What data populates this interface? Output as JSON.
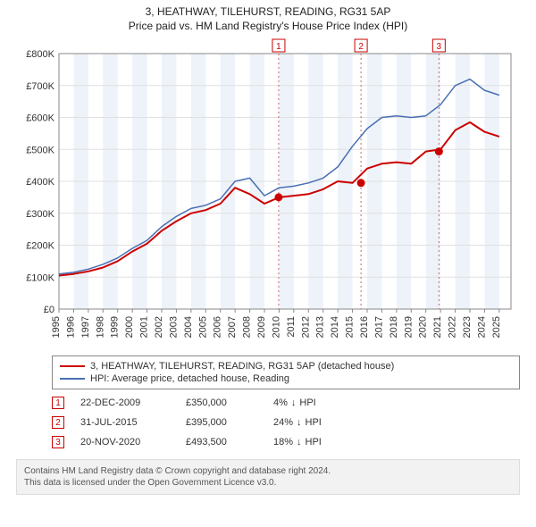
{
  "title": {
    "line1": "3, HEATHWAY, TILEHURST, READING, RG31 5AP",
    "line2": "Price paid vs. HM Land Registry's House Price Index (HPI)"
  },
  "chart": {
    "type": "line",
    "background_color": "#ffffff",
    "plot_border_color": "#888888",
    "grid_color": "#e0e0e0",
    "band_color": "#eef3fa",
    "ylabel_prefix": "£",
    "ylim": [
      0,
      800000
    ],
    "yticks": [
      0,
      100000,
      200000,
      300000,
      400000,
      500000,
      600000,
      700000,
      800000
    ],
    "ytick_labels": [
      "£0",
      "£100K",
      "£200K",
      "£300K",
      "£400K",
      "£500K",
      "£600K",
      "£700K",
      "£800K"
    ],
    "xlim": [
      1995,
      2025.8
    ],
    "xticks": [
      1995,
      1996,
      1997,
      1998,
      1999,
      2000,
      2001,
      2002,
      2003,
      2004,
      2005,
      2006,
      2007,
      2008,
      2009,
      2010,
      2011,
      2012,
      2013,
      2014,
      2015,
      2016,
      2017,
      2018,
      2019,
      2020,
      2021,
      2022,
      2023,
      2024,
      2025
    ],
    "series": [
      {
        "key": "property",
        "color": "#cc0000",
        "width": 2,
        "points": [
          [
            1995,
            105000
          ],
          [
            1996,
            110000
          ],
          [
            1997,
            118000
          ],
          [
            1998,
            130000
          ],
          [
            1999,
            150000
          ],
          [
            2000,
            180000
          ],
          [
            2001,
            205000
          ],
          [
            2002,
            245000
          ],
          [
            2003,
            275000
          ],
          [
            2004,
            300000
          ],
          [
            2005,
            310000
          ],
          [
            2006,
            330000
          ],
          [
            2007,
            380000
          ],
          [
            2008,
            360000
          ],
          [
            2009,
            330000
          ],
          [
            2010,
            350000
          ],
          [
            2011,
            355000
          ],
          [
            2012,
            360000
          ],
          [
            2013,
            375000
          ],
          [
            2014,
            400000
          ],
          [
            2015,
            395000
          ],
          [
            2016,
            440000
          ],
          [
            2017,
            455000
          ],
          [
            2018,
            460000
          ],
          [
            2019,
            455000
          ],
          [
            2020,
            493500
          ],
          [
            2021,
            500000
          ],
          [
            2022,
            560000
          ],
          [
            2023,
            585000
          ],
          [
            2024,
            555000
          ],
          [
            2025,
            540000
          ]
        ]
      },
      {
        "key": "hpi",
        "color": "#4a6fb3",
        "width": 1.5,
        "points": [
          [
            1995,
            110000
          ],
          [
            1996,
            115000
          ],
          [
            1997,
            125000
          ],
          [
            1998,
            140000
          ],
          [
            1999,
            160000
          ],
          [
            2000,
            190000
          ],
          [
            2001,
            215000
          ],
          [
            2002,
            258000
          ],
          [
            2003,
            290000
          ],
          [
            2004,
            315000
          ],
          [
            2005,
            325000
          ],
          [
            2006,
            345000
          ],
          [
            2007,
            400000
          ],
          [
            2008,
            410000
          ],
          [
            2009,
            355000
          ],
          [
            2010,
            380000
          ],
          [
            2011,
            385000
          ],
          [
            2012,
            395000
          ],
          [
            2013,
            410000
          ],
          [
            2014,
            445000
          ],
          [
            2015,
            510000
          ],
          [
            2016,
            565000
          ],
          [
            2017,
            600000
          ],
          [
            2018,
            605000
          ],
          [
            2019,
            600000
          ],
          [
            2020,
            605000
          ],
          [
            2021,
            640000
          ],
          [
            2022,
            700000
          ],
          [
            2023,
            720000
          ],
          [
            2024,
            685000
          ],
          [
            2025,
            670000
          ]
        ]
      }
    ],
    "event_markers": [
      {
        "n": "1",
        "x": 2009.97,
        "y": 350000
      },
      {
        "n": "2",
        "x": 2015.58,
        "y": 395000
      },
      {
        "n": "3",
        "x": 2020.89,
        "y": 493500
      }
    ]
  },
  "legend": {
    "items": [
      {
        "color": "#cc0000",
        "label": "3, HEATHWAY, TILEHURST, READING, RG31 5AP (detached house)"
      },
      {
        "color": "#4a6fb3",
        "label": "HPI: Average price, detached house, Reading"
      }
    ]
  },
  "events": [
    {
      "n": "1",
      "date": "22-DEC-2009",
      "price": "£350,000",
      "delta": "4%",
      "dir": "↓",
      "vs": "HPI"
    },
    {
      "n": "2",
      "date": "31-JUL-2015",
      "price": "£395,000",
      "delta": "24%",
      "dir": "↓",
      "vs": "HPI"
    },
    {
      "n": "3",
      "date": "20-NOV-2020",
      "price": "£493,500",
      "delta": "18%",
      "dir": "↓",
      "vs": "HPI"
    }
  ],
  "footer": {
    "line1": "Contains HM Land Registry data © Crown copyright and database right 2024.",
    "line2": "This data is licensed under the Open Government Licence v3.0."
  },
  "colors": {
    "marker_border": "#cc0000",
    "marker_line": "#cc6666"
  }
}
